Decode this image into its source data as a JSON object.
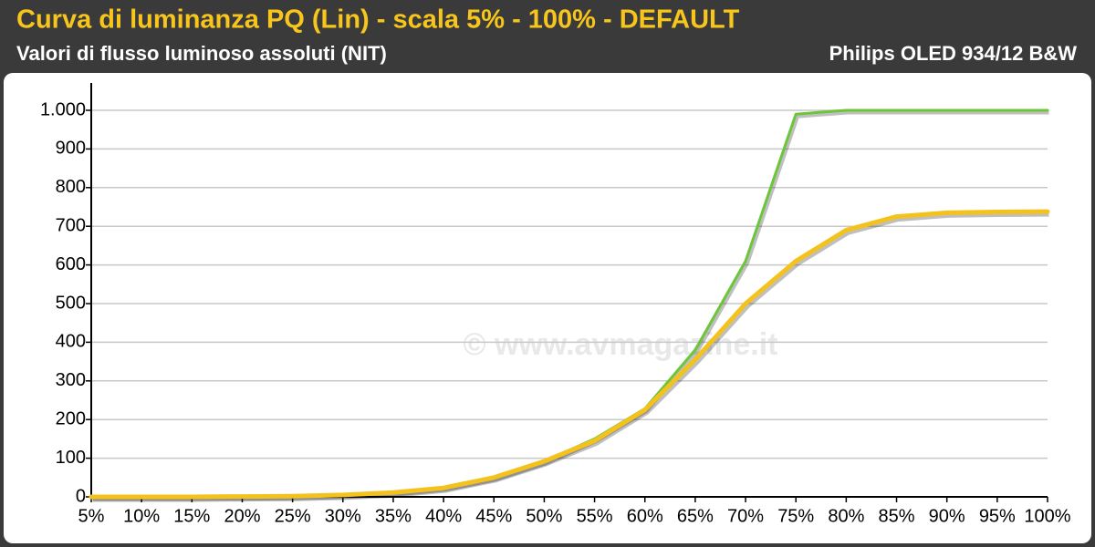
{
  "chart_data": {
    "type": "line",
    "title": "Curva di luminanza PQ (Lin) - scala 5% - 100% - DEFAULT",
    "subtitle": "Valori di flusso luminoso assoluti (NIT)",
    "device": "Philips OLED 934/12 B&W",
    "watermark": "© www.avmagazine.it",
    "categories": [
      "5%",
      "10%",
      "15%",
      "20%",
      "25%",
      "30%",
      "35%",
      "40%",
      "45%",
      "50%",
      "55%",
      "60%",
      "65%",
      "70%",
      "75%",
      "80%",
      "85%",
      "90%",
      "95%",
      "100%"
    ],
    "series": [
      {
        "color": "#6cc63a",
        "values": [
          0,
          0,
          0,
          1,
          2,
          5,
          11,
          24,
          50,
          92,
          150,
          228,
          380,
          610,
          990,
          1000,
          1000,
          1000,
          1000,
          1000
        ]
      },
      {
        "color": "#f4c21c",
        "values": [
          0,
          0,
          0,
          1,
          2,
          5,
          11,
          23,
          50,
          92,
          145,
          225,
          355,
          500,
          610,
          690,
          725,
          735,
          737,
          738
        ]
      }
    ],
    "ylim": [
      0,
      1000
    ],
    "yticks": [
      0,
      100,
      200,
      300,
      400,
      500,
      600,
      700,
      800,
      900,
      {
        "value": 1000,
        "label": "1.000"
      }
    ],
    "grid": true
  }
}
